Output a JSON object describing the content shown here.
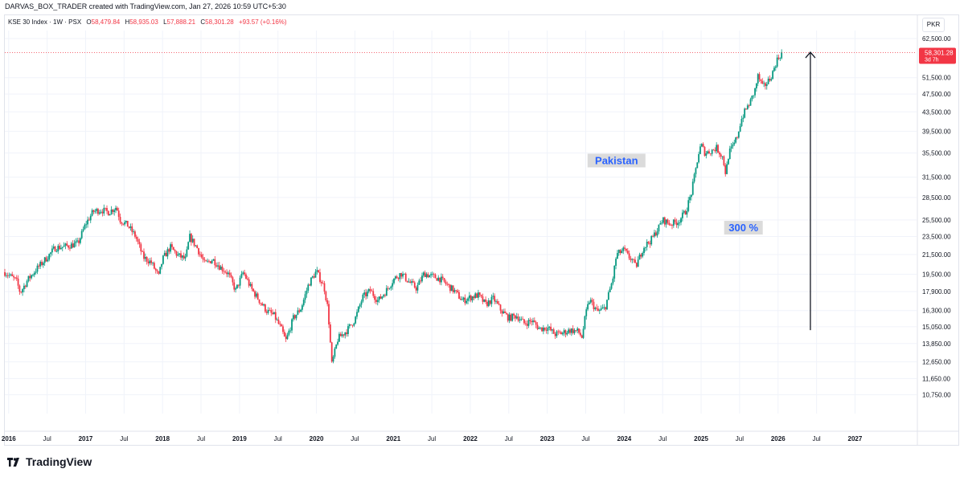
{
  "caption": "DARVAS_BOX_TRADER created with TradingView.com, Jan 27, 2026 10:59 UTC+5:30",
  "legend": {
    "symbol": "KSE 30 Index · 1W · PSX",
    "open_label": "O",
    "open": "58,479.84",
    "high_label": "H",
    "high": "58,935.03",
    "low_label": "L",
    "low": "57,888.21",
    "close_label": "C",
    "close": "58,301.28",
    "change": "+93.57 (+0.16%)"
  },
  "currency": "PKR",
  "price_tag": {
    "value": "58,301.28",
    "countdown": "3d 7h"
  },
  "annotations": [
    {
      "text": "Pakistan",
      "x": 2023.9,
      "y": 34000
    },
    {
      "text": "300 %",
      "x": 2025.55,
      "y": 24400
    }
  ],
  "brand": "TradingView",
  "colors": {
    "up": "#089981",
    "down": "#f23645",
    "text": "#131722",
    "grid": "#f0f3fa",
    "label_bg": "#dbdbdb",
    "label_text": "#2962ff"
  },
  "chart_data": {
    "type": "candlestick",
    "y_scale": "log",
    "ylim": [
      9800,
      64500
    ],
    "xlim": [
      2015.95,
      2027.8
    ],
    "y_ticks": [
      "62,500.00",
      "51,500.00",
      "47,500.00",
      "43,500.00",
      "39,500.00",
      "35,500.00",
      "31,500.00",
      "28,500.00",
      "25,500.00",
      "23,500.00",
      "21,500.00",
      "19,500.00",
      "17,900.00",
      "16,300.00",
      "15,050.00",
      "13,850.00",
      "12,650.00",
      "11,650.00",
      "10,750.00"
    ],
    "x_ticks": [
      {
        "label": "2016",
        "t": 2016.0,
        "bold": true
      },
      {
        "label": "Jul",
        "t": 2016.5
      },
      {
        "label": "2017",
        "t": 2017.0,
        "bold": true
      },
      {
        "label": "Jul",
        "t": 2017.5
      },
      {
        "label": "2018",
        "t": 2018.0,
        "bold": true
      },
      {
        "label": "Jul",
        "t": 2018.5
      },
      {
        "label": "2019",
        "t": 2019.0,
        "bold": true
      },
      {
        "label": "Jul",
        "t": 2019.5
      },
      {
        "label": "2020",
        "t": 2020.0,
        "bold": true
      },
      {
        "label": "Jul",
        "t": 2020.5
      },
      {
        "label": "2021",
        "t": 2021.0,
        "bold": true
      },
      {
        "label": "Jul",
        "t": 2021.5
      },
      {
        "label": "2022",
        "t": 2022.0,
        "bold": true
      },
      {
        "label": "Jul",
        "t": 2022.5
      },
      {
        "label": "2023",
        "t": 2023.0,
        "bold": true
      },
      {
        "label": "Jul",
        "t": 2023.5
      },
      {
        "label": "2024",
        "t": 2024.0,
        "bold": true
      },
      {
        "label": "Jul",
        "t": 2024.5
      },
      {
        "label": "2025",
        "t": 2025.0,
        "bold": true
      },
      {
        "label": "Jul",
        "t": 2025.5
      },
      {
        "label": "2026",
        "t": 2026.0,
        "bold": true
      },
      {
        "label": "Jul",
        "t": 2026.5
      },
      {
        "label": "2027",
        "t": 2027.0,
        "bold": true
      }
    ],
    "last_price": 58301.28,
    "arrow": {
      "x": 2026.42,
      "from": 14800,
      "to": 58400
    },
    "close_path": [
      [
        2015.95,
        19700
      ],
      [
        2016.1,
        18900
      ],
      [
        2016.15,
        17800
      ],
      [
        2016.25,
        19000
      ],
      [
        2016.35,
        19900
      ],
      [
        2016.5,
        21200
      ],
      [
        2016.6,
        22200
      ],
      [
        2016.75,
        22400
      ],
      [
        2016.9,
        22700
      ],
      [
        2017.0,
        25000
      ],
      [
        2017.1,
        26600
      ],
      [
        2017.2,
        26800
      ],
      [
        2017.3,
        26500
      ],
      [
        2017.4,
        27200
      ],
      [
        2017.45,
        25500
      ],
      [
        2017.55,
        24800
      ],
      [
        2017.65,
        23500
      ],
      [
        2017.75,
        21200
      ],
      [
        2017.85,
        20700
      ],
      [
        2017.95,
        19300
      ],
      [
        2018.0,
        21000
      ],
      [
        2018.1,
        22300
      ],
      [
        2018.2,
        21400
      ],
      [
        2018.3,
        21000
      ],
      [
        2018.35,
        23500
      ],
      [
        2018.45,
        22200
      ],
      [
        2018.55,
        20500
      ],
      [
        2018.65,
        21000
      ],
      [
        2018.75,
        20200
      ],
      [
        2018.85,
        19600
      ],
      [
        2018.95,
        18000
      ],
      [
        2019.05,
        19700
      ],
      [
        2019.15,
        18200
      ],
      [
        2019.25,
        17200
      ],
      [
        2019.35,
        16300
      ],
      [
        2019.45,
        15900
      ],
      [
        2019.55,
        14800
      ],
      [
        2019.6,
        14000
      ],
      [
        2019.7,
        15700
      ],
      [
        2019.8,
        16500
      ],
      [
        2019.9,
        18600
      ],
      [
        2020.0,
        19800
      ],
      [
        2020.1,
        18300
      ],
      [
        2020.15,
        16400
      ],
      [
        2020.2,
        12500
      ],
      [
        2020.28,
        14200
      ],
      [
        2020.4,
        14800
      ],
      [
        2020.5,
        15600
      ],
      [
        2020.6,
        17400
      ],
      [
        2020.7,
        18000
      ],
      [
        2020.8,
        17100
      ],
      [
        2020.9,
        17900
      ],
      [
        2021.0,
        19000
      ],
      [
        2021.1,
        19600
      ],
      [
        2021.2,
        18800
      ],
      [
        2021.3,
        18200
      ],
      [
        2021.4,
        19600
      ],
      [
        2021.5,
        19300
      ],
      [
        2021.6,
        19100
      ],
      [
        2021.7,
        18500
      ],
      [
        2021.8,
        17900
      ],
      [
        2021.9,
        17100
      ],
      [
        2022.0,
        17400
      ],
      [
        2022.1,
        17600
      ],
      [
        2022.2,
        16800
      ],
      [
        2022.3,
        17300
      ],
      [
        2022.4,
        16300
      ],
      [
        2022.5,
        15700
      ],
      [
        2022.6,
        15900
      ],
      [
        2022.7,
        15300
      ],
      [
        2022.8,
        15500
      ],
      [
        2022.9,
        14900
      ],
      [
        2023.0,
        15000
      ],
      [
        2023.1,
        14500
      ],
      [
        2023.2,
        14600
      ],
      [
        2023.3,
        14800
      ],
      [
        2023.4,
        14700
      ],
      [
        2023.45,
        14300
      ],
      [
        2023.5,
        16000
      ],
      [
        2023.55,
        17200
      ],
      [
        2023.6,
        16700
      ],
      [
        2023.65,
        16200
      ],
      [
        2023.75,
        16500
      ],
      [
        2023.85,
        19000
      ],
      [
        2023.9,
        21500
      ],
      [
        2024.0,
        22000
      ],
      [
        2024.05,
        21300
      ],
      [
        2024.1,
        21000
      ],
      [
        2024.15,
        20200
      ],
      [
        2024.25,
        22300
      ],
      [
        2024.35,
        23100
      ],
      [
        2024.45,
        24600
      ],
      [
        2024.5,
        25500
      ],
      [
        2024.6,
        25000
      ],
      [
        2024.7,
        25300
      ],
      [
        2024.8,
        26600
      ],
      [
        2024.87,
        29000
      ],
      [
        2024.92,
        32000
      ],
      [
        2024.96,
        35000
      ],
      [
        2025.0,
        37000
      ],
      [
        2025.05,
        35500
      ],
      [
        2025.12,
        35800
      ],
      [
        2025.2,
        36400
      ],
      [
        2025.28,
        34800
      ],
      [
        2025.32,
        32000
      ],
      [
        2025.36,
        35500
      ],
      [
        2025.42,
        36800
      ],
      [
        2025.47,
        38600
      ],
      [
        2025.52,
        41800
      ],
      [
        2025.58,
        44000
      ],
      [
        2025.64,
        45700
      ],
      [
        2025.7,
        48500
      ],
      [
        2025.74,
        52000
      ],
      [
        2025.8,
        49000
      ],
      [
        2025.88,
        50800
      ],
      [
        2025.93,
        52800
      ],
      [
        2025.98,
        56000
      ],
      [
        2026.05,
        58301.28
      ]
    ]
  }
}
